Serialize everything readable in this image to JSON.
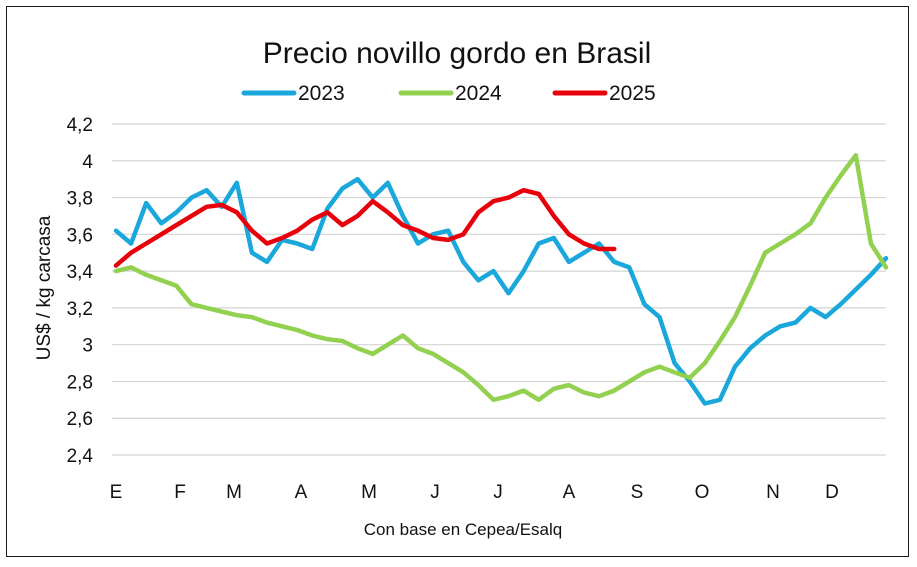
{
  "chart_data": {
    "type": "line",
    "title": "Precio novillo gordo en Brasil",
    "ylabel": "US$ / kg carcasa",
    "xlabel": "",
    "source_note": "Con base en Cepea/Esalq",
    "ylim": [
      2.4,
      4.2
    ],
    "y_ticks": [
      "2,4",
      "2,6",
      "2,8",
      "3",
      "3,2",
      "3,4",
      "3,6",
      "3,8",
      "4",
      "4,2"
    ],
    "y_tick_values": [
      2.4,
      2.6,
      2.8,
      3.0,
      3.2,
      3.4,
      3.6,
      3.8,
      4.0,
      4.2
    ],
    "x_ticks": [
      "E",
      "F",
      "M",
      "A",
      "M",
      "J",
      "J",
      "A",
      "S",
      "O",
      "N",
      "D"
    ],
    "x_unit": "week of year",
    "xlim": [
      1,
      52
    ],
    "grid": "horizontal",
    "legend_position": "top",
    "series": [
      {
        "name": "2023",
        "color": "#1aa7dc",
        "x": [
          1,
          2,
          3,
          4,
          5,
          6,
          7,
          8,
          9,
          10,
          11,
          12,
          13,
          14,
          15,
          16,
          17,
          18,
          19,
          20,
          21,
          22,
          23,
          24,
          25,
          26,
          27,
          28,
          29,
          30,
          31,
          32,
          33,
          34,
          35,
          36,
          37,
          38,
          39,
          40,
          41,
          42,
          43,
          44,
          45,
          46,
          47,
          48,
          49,
          50,
          51,
          52
        ],
        "values": [
          3.62,
          3.55,
          3.77,
          3.66,
          3.72,
          3.8,
          3.84,
          3.75,
          3.88,
          3.5,
          3.45,
          3.57,
          3.55,
          3.52,
          3.74,
          3.85,
          3.9,
          3.8,
          3.88,
          3.7,
          3.55,
          3.6,
          3.62,
          3.45,
          3.35,
          3.4,
          3.28,
          3.4,
          3.55,
          3.58,
          3.45,
          3.5,
          3.55,
          3.45,
          3.42,
          3.22,
          3.15,
          2.9,
          2.8,
          2.68,
          2.7,
          2.88,
          2.98,
          3.05,
          3.1,
          3.12,
          3.2,
          3.15,
          3.22,
          3.3,
          3.38,
          3.47
        ]
      },
      {
        "name": "2024",
        "color": "#92d050",
        "x": [
          1,
          2,
          3,
          4,
          5,
          6,
          7,
          8,
          9,
          10,
          11,
          12,
          13,
          14,
          15,
          16,
          17,
          18,
          19,
          20,
          21,
          22,
          23,
          24,
          25,
          26,
          27,
          28,
          29,
          30,
          31,
          32,
          33,
          34,
          35,
          36,
          37,
          38,
          39,
          40,
          41,
          42,
          43,
          44,
          45,
          46,
          47,
          48,
          49,
          50,
          51,
          52
        ],
        "values": [
          3.4,
          3.42,
          3.38,
          3.35,
          3.32,
          3.22,
          3.2,
          3.18,
          3.16,
          3.15,
          3.12,
          3.1,
          3.08,
          3.05,
          3.03,
          3.02,
          2.98,
          2.95,
          3.0,
          3.05,
          2.98,
          2.95,
          2.9,
          2.85,
          2.78,
          2.7,
          2.72,
          2.75,
          2.7,
          2.76,
          2.78,
          2.74,
          2.72,
          2.75,
          2.8,
          2.85,
          2.88,
          2.85,
          2.82,
          2.9,
          3.02,
          3.15,
          3.32,
          3.5,
          3.55,
          3.6,
          3.66,
          3.8,
          3.92,
          4.03,
          3.55,
          3.42
        ]
      },
      {
        "name": "2025",
        "color": "#e8000b",
        "x": [
          1,
          2,
          3,
          4,
          5,
          6,
          7,
          8,
          9,
          10,
          11,
          12,
          13,
          14,
          15,
          16,
          17,
          18,
          19,
          20,
          21,
          22,
          23,
          24,
          25,
          26,
          27,
          28,
          29,
          30,
          31,
          32,
          33,
          34
        ],
        "values": [
          3.43,
          3.5,
          3.55,
          3.6,
          3.65,
          3.7,
          3.75,
          3.76,
          3.72,
          3.62,
          3.55,
          3.58,
          3.62,
          3.68,
          3.72,
          3.65,
          3.7,
          3.78,
          3.72,
          3.65,
          3.62,
          3.58,
          3.57,
          3.6,
          3.72,
          3.78,
          3.8,
          3.84,
          3.82,
          3.7,
          3.6,
          3.55,
          3.52,
          3.52
        ]
      }
    ]
  }
}
